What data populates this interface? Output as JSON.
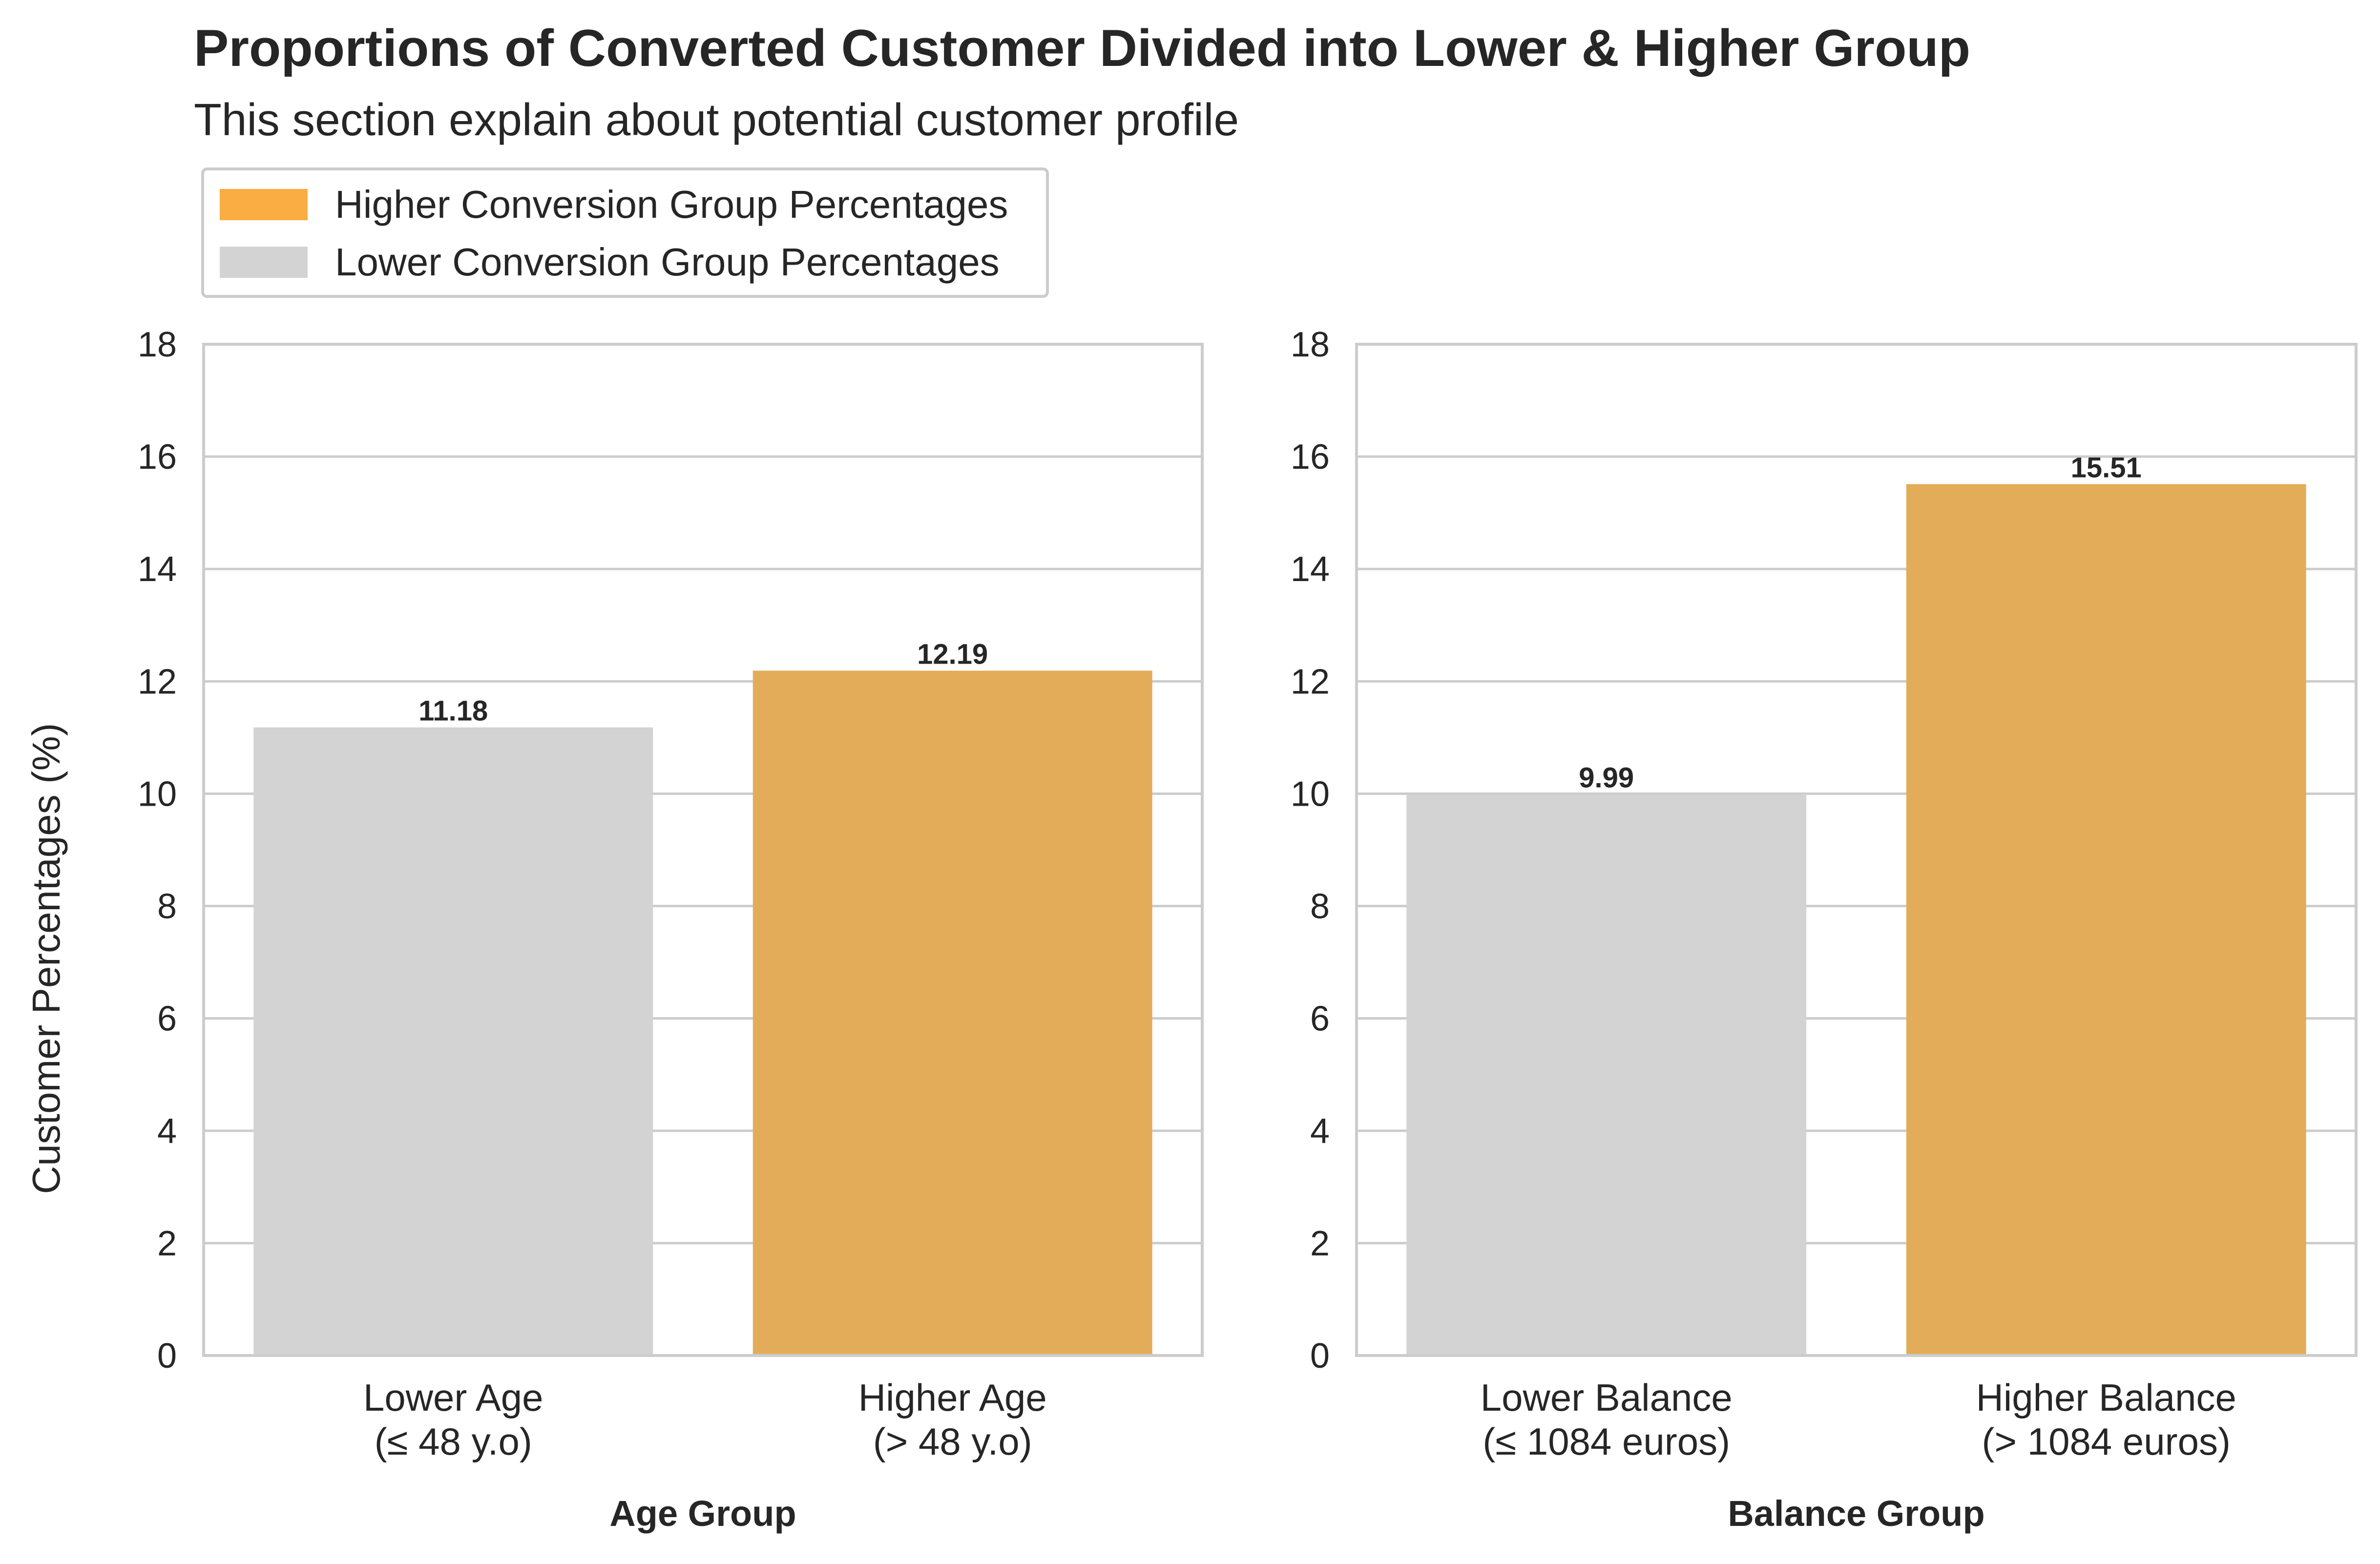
{
  "title": "Proportions of Converted Customer Divided into Lower & Higher Group",
  "subtitle": "This section explain about potential customer profile",
  "legend": {
    "items": [
      {
        "label": "Higher Conversion Group Percentages",
        "color": "#f9ad43"
      },
      {
        "label": "Lower Conversion Group Percentages",
        "color": "#d3d3d3"
      }
    ],
    "placement": "top-left"
  },
  "chart_data": [
    {
      "type": "bar",
      "categories": [
        [
          "Lower Age",
          "(≤ 48 y.o)"
        ],
        [
          "Higher Age",
          "(> 48 y.o)"
        ]
      ],
      "values": [
        11.18,
        12.19
      ],
      "data_labels": [
        "11.18",
        "12.19"
      ],
      "colors": [
        "#d3d3d3",
        "#e3ac59"
      ],
      "xlabel": "Age Group",
      "ylabel": "Customer Percentages (%)",
      "ylim": [
        0,
        18
      ],
      "yticks": [
        0,
        2,
        4,
        6,
        8,
        10,
        12,
        14,
        16,
        18
      ],
      "grid": "horizontal"
    },
    {
      "type": "bar",
      "categories": [
        [
          "Lower Balance",
          "(≤ 1084 euros)"
        ],
        [
          "Higher Balance",
          "(> 1084 euros)"
        ]
      ],
      "values": [
        9.99,
        15.51
      ],
      "data_labels": [
        "9.99",
        "15.51"
      ],
      "colors": [
        "#d3d3d3",
        "#e3ac59"
      ],
      "xlabel": "Balance Group",
      "ylim": [
        0,
        18
      ],
      "yticks": [
        0,
        2,
        4,
        6,
        8,
        10,
        12,
        14,
        16,
        18
      ],
      "grid": "horizontal"
    }
  ]
}
